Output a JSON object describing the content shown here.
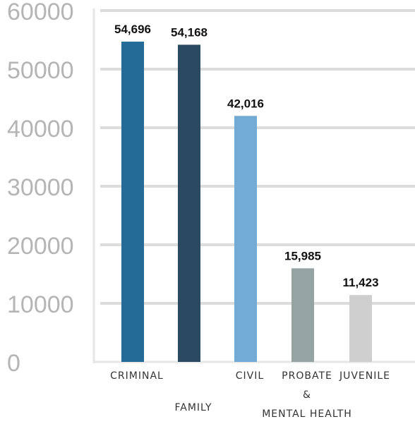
{
  "chart_data": {
    "type": "bar",
    "categories": [
      {
        "lines": [
          "CRIMINAL"
        ],
        "offset": 0
      },
      {
        "lines": [
          "FAMILY"
        ],
        "offset": 1
      },
      {
        "lines": [
          "CIVIL"
        ],
        "offset": 0
      },
      {
        "lines": [
          "PROBATE",
          "&",
          "MENTAL HEALTH"
        ],
        "offset": 0
      },
      {
        "lines": [
          "JUVENILE"
        ],
        "offset": 0
      }
    ],
    "values": [
      54696,
      54168,
      42016,
      15985,
      11423
    ],
    "value_labels": [
      "54,696",
      "54,168",
      "42,016",
      "15,985",
      "11,423"
    ],
    "colors": [
      "#256b98",
      "#2a4a61",
      "#72abd5",
      "#95a4a2",
      "#cfcfcf"
    ],
    "ylim": [
      0,
      60000
    ],
    "yticks": [
      0,
      10000,
      20000,
      30000,
      40000,
      50000,
      60000
    ],
    "grid": true,
    "legend": "none"
  }
}
